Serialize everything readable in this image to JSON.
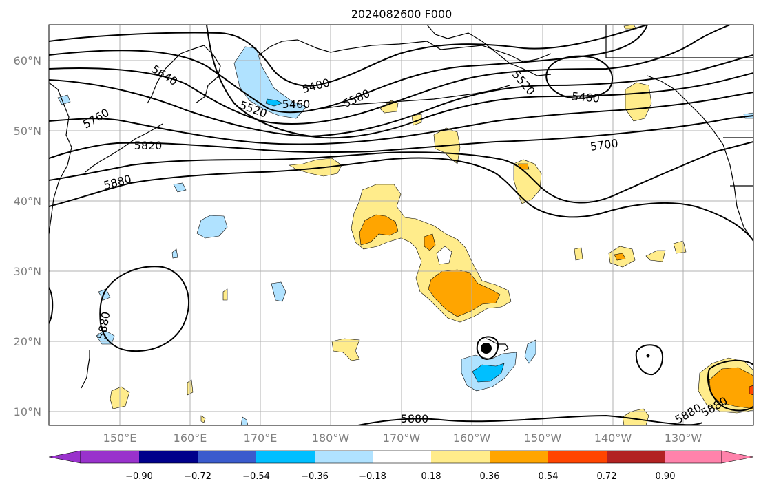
{
  "title": "2024082600 F000",
  "map": {
    "lat_ticks": [
      "60°N",
      "50°N",
      "40°N",
      "30°N",
      "20°N",
      "10°N"
    ],
    "lon_ticks": [
      "150°E",
      "160°E",
      "170°E",
      "180°W",
      "170°W",
      "160°W",
      "150°W",
      "140°W",
      "130°W"
    ],
    "contour_labels": [
      "5640",
      "5520",
      "5460",
      "5400",
      "5580",
      "5520",
      "5460",
      "5760",
      "5820",
      "5880",
      "5700",
      "5880",
      "5880",
      "5880",
      "5880"
    ]
  },
  "colorbar": {
    "ticks": [
      "−0.90",
      "−0.72",
      "−0.54",
      "−0.36",
      "−0.18",
      "0.18",
      "0.36",
      "0.54",
      "0.72",
      "0.90"
    ],
    "colors": [
      "#9932cc",
      "#00008b",
      "#3a5bcd",
      "#00bfff",
      "#b0e2ff",
      "#ffffff",
      "#ffec8b",
      "#ffa500",
      "#ff4500",
      "#b22222",
      "#ff82ab"
    ]
  }
}
